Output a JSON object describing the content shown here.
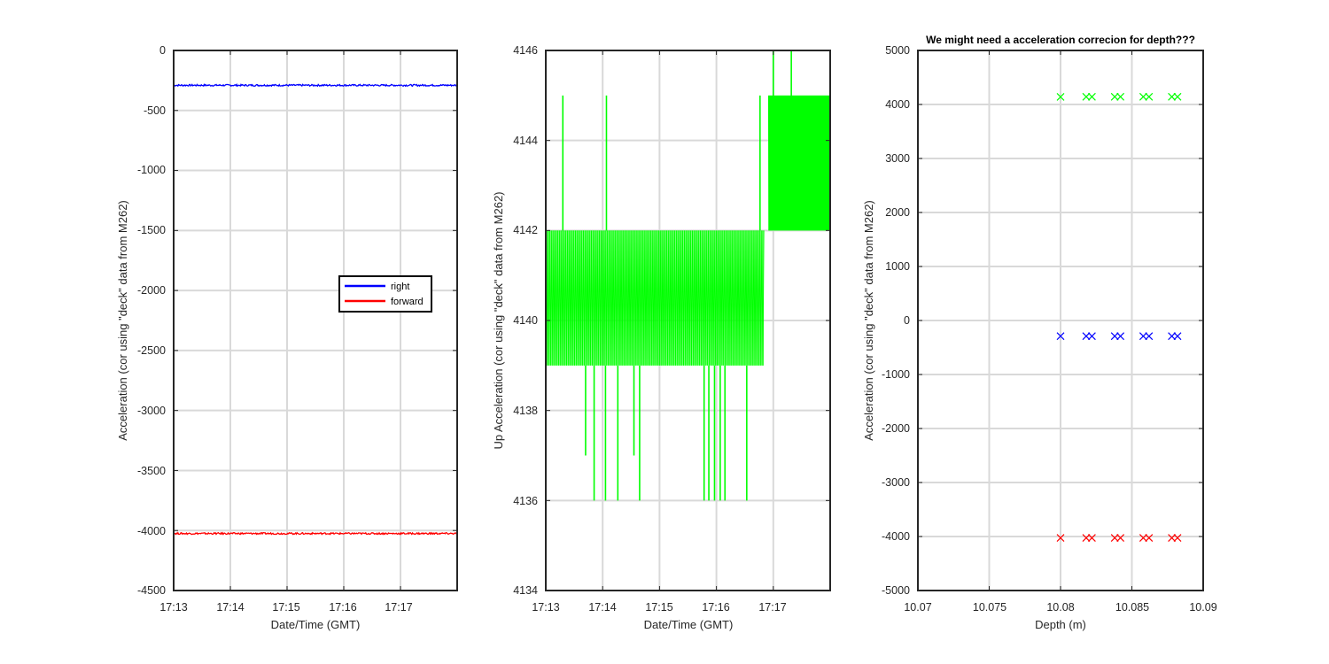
{
  "colors": {
    "right": "#0000ff",
    "forward": "#ff0000",
    "up": "#00ff00"
  },
  "chart_data": [
    {
      "type": "line",
      "title": "",
      "xlabel": "Date/Time (GMT)",
      "ylabel": "Acceleration (cor using \"deck\" data from M262)",
      "x_range": [
        "17:13",
        "17:18"
      ],
      "ylim": [
        -4500,
        0
      ],
      "x_ticks": [
        "17:13",
        "17:14",
        "17:15",
        "17:16",
        "17:17"
      ],
      "y_ticks": [
        "0",
        "-500",
        "-1000",
        "-1500",
        "-2000",
        "-2500",
        "-3000",
        "-3500",
        "-4000",
        "-4500"
      ],
      "grid": true,
      "legend": {
        "location": "right",
        "entries": [
          "right",
          "forward"
        ]
      },
      "series": [
        {
          "name": "right",
          "color": "#0000ff",
          "x": [
            "17:13",
            "17:18"
          ],
          "values": [
            -290,
            -290
          ]
        },
        {
          "name": "forward",
          "color": "#ff0000",
          "x": [
            "17:13",
            "17:18"
          ],
          "values": [
            -4025,
            -4025
          ]
        }
      ]
    },
    {
      "type": "line",
      "title": "",
      "xlabel": "Date/Time (GMT)",
      "ylabel": "Up Acceleration (cor using \"deck\" data from M262)",
      "x_range": [
        "17:13",
        "17:18"
      ],
      "ylim": [
        4134,
        4146
      ],
      "x_ticks": [
        "17:13",
        "17:14",
        "17:15",
        "17:16",
        "17:17"
      ],
      "y_ticks": [
        "4146",
        "4144",
        "4142",
        "4140",
        "4138",
        "4136",
        "4134"
      ],
      "grid": true,
      "series": [
        {
          "color": "#00ff00",
          "segments": [
            {
              "x_start": "17:13:00",
              "x_end": "17:16:50",
              "low": 4139,
              "high": 4142
            },
            {
              "x_start": "17:16:55",
              "x_end": "17:18:00",
              "low": 4142,
              "high": 4145
            }
          ],
          "spikes": [
            {
              "x": "17:13:18",
              "value": 4145
            },
            {
              "x": "17:13:42",
              "value": 4137
            },
            {
              "x": "17:13:51",
              "value": 4136
            },
            {
              "x": "17:14:03",
              "value": 4136
            },
            {
              "x": "17:14:04",
              "value": 4145
            },
            {
              "x": "17:14:16",
              "value": 4136
            },
            {
              "x": "17:14:33",
              "value": 4137
            },
            {
              "x": "17:14:39",
              "value": 4136
            },
            {
              "x": "17:15:47",
              "value": 4136
            },
            {
              "x": "17:15:52",
              "value": 4136
            },
            {
              "x": "17:15:58",
              "value": 4136
            },
            {
              "x": "17:16:04",
              "value": 4136
            },
            {
              "x": "17:16:09",
              "value": 4136
            },
            {
              "x": "17:16:32",
              "value": 4136
            },
            {
              "x": "17:16:46",
              "value": 4145
            },
            {
              "x": "17:16:59",
              "value": 4139
            },
            {
              "x": "17:17:00",
              "value": 4146
            },
            {
              "x": "17:17:07",
              "value": 4139
            },
            {
              "x": "17:17:19",
              "value": 4146
            },
            {
              "x": "17:17:52",
              "value": 4139
            }
          ]
        }
      ]
    },
    {
      "type": "scatter",
      "title": "We might need a acceleration correcion for depth???",
      "xlabel": "Depth (m)",
      "ylabel": "Acceleration (cor using \"deck\" data from M262)",
      "xlim": [
        10.07,
        10.09
      ],
      "ylim": [
        -5000,
        5000
      ],
      "x_ticks": [
        "10.07",
        "10.075",
        "10.08",
        "10.085",
        "10.09"
      ],
      "y_ticks": [
        "5000",
        "4000",
        "3000",
        "2000",
        "1000",
        "0",
        "-1000",
        "-2000",
        "-3000",
        "-4000",
        "-5000"
      ],
      "grid": true,
      "marker": "x",
      "series": [
        {
          "color": "#00ff00",
          "x": [
            10.08,
            10.0818,
            10.0822,
            10.0838,
            10.0842,
            10.0858,
            10.0862,
            10.0878,
            10.0882
          ],
          "values": [
            4140,
            4142,
            4142,
            4142,
            4142,
            4142,
            4142,
            4142,
            4142
          ]
        },
        {
          "color": "#0000ff",
          "x": [
            10.08,
            10.0818,
            10.0822,
            10.0838,
            10.0842,
            10.0858,
            10.0862,
            10.0878,
            10.0882
          ],
          "values": [
            -290,
            -290,
            -290,
            -290,
            -290,
            -290,
            -290,
            -290,
            -290
          ]
        },
        {
          "color": "#ff0000",
          "x": [
            10.08,
            10.0818,
            10.0822,
            10.0838,
            10.0842,
            10.0858,
            10.0862,
            10.0878,
            10.0882
          ],
          "values": [
            -4025,
            -4025,
            -4025,
            -4025,
            -4025,
            -4025,
            -4025,
            -4025,
            -4025
          ]
        }
      ]
    }
  ]
}
